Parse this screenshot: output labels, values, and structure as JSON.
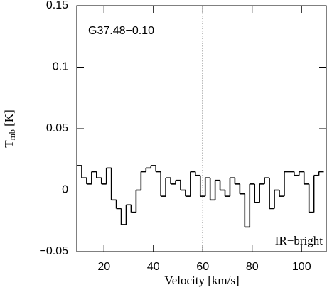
{
  "chart_data": {
    "type": "step",
    "title": "G37.48−0.10",
    "annotation": "IR−bright",
    "x_label": "Velocity [km/s]",
    "y_label": [
      "T",
      "mb",
      " [K]"
    ],
    "x": [
      10,
      12,
      14,
      16,
      18,
      20,
      22,
      24,
      26,
      28,
      30,
      32,
      34,
      36,
      38,
      40,
      42,
      44,
      46,
      48,
      50,
      52,
      54,
      56,
      58,
      60,
      62,
      64,
      66,
      68,
      70,
      72,
      74,
      76,
      78,
      80,
      82,
      84,
      86,
      88,
      90,
      92,
      94,
      96,
      98,
      100,
      102,
      104,
      106,
      108
    ],
    "values": [
      0.02,
      0.01,
      0.005,
      0.015,
      0.01,
      0.005,
      0.018,
      -0.008,
      -0.015,
      -0.028,
      -0.012,
      -0.018,
      0.0,
      0.015,
      0.018,
      0.02,
      0.015,
      -0.005,
      0.01,
      0.005,
      0.008,
      0.0,
      -0.005,
      0.015,
      0.012,
      -0.005,
      0.01,
      -0.008,
      0.008,
      0.0,
      -0.005,
      0.01,
      0.005,
      -0.003,
      -0.03,
      0.005,
      -0.01,
      0.005,
      0.01,
      -0.015,
      0.0,
      -0.005,
      0.015,
      0.015,
      0.012,
      0.015,
      0.005,
      -0.018,
      0.012,
      0.015
    ],
    "color": "#000000",
    "vline": 60,
    "xlim": [
      9,
      110
    ],
    "ylim": [
      -0.05,
      0.15
    ],
    "xticks": [
      20,
      40,
      60,
      80,
      100
    ],
    "yticks": [
      {
        "value": -0.05,
        "label": "−0.05"
      },
      0,
      0.05,
      0.1,
      0.15
    ]
  }
}
